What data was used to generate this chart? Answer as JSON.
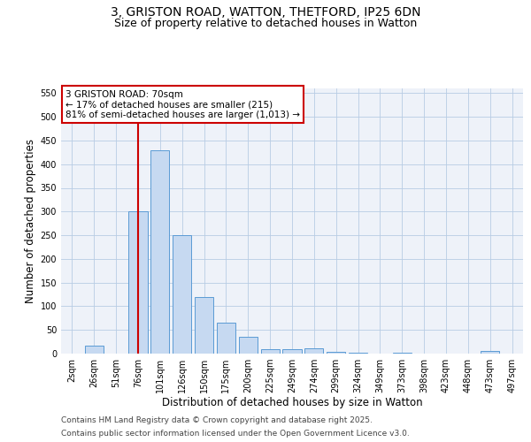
{
  "title1": "3, GRISTON ROAD, WATTON, THETFORD, IP25 6DN",
  "title2": "Size of property relative to detached houses in Watton",
  "xlabel": "Distribution of detached houses by size in Watton",
  "ylabel": "Number of detached properties",
  "categories": [
    "2sqm",
    "26sqm",
    "51sqm",
    "76sqm",
    "101sqm",
    "126sqm",
    "150sqm",
    "175sqm",
    "200sqm",
    "225sqm",
    "249sqm",
    "274sqm",
    "299sqm",
    "324sqm",
    "349sqm",
    "373sqm",
    "398sqm",
    "423sqm",
    "448sqm",
    "473sqm",
    "497sqm"
  ],
  "values": [
    0,
    17,
    0,
    300,
    430,
    250,
    120,
    65,
    35,
    10,
    10,
    12,
    4,
    2,
    0,
    2,
    0,
    0,
    0,
    5,
    0
  ],
  "bar_color": "#c6d9f1",
  "bar_edge_color": "#5b9bd5",
  "red_line_index": 3,
  "red_line_color": "#cc0000",
  "annotation_line1": "3 GRISTON ROAD: 70sqm",
  "annotation_line2": "← 17% of detached houses are smaller (215)",
  "annotation_line3": "81% of semi-detached houses are larger (1,013) →",
  "annotation_box_color": "#ffffff",
  "annotation_box_edge": "#cc0000",
  "ylim": [
    0,
    560
  ],
  "yticks": [
    0,
    50,
    100,
    150,
    200,
    250,
    300,
    350,
    400,
    450,
    500,
    550
  ],
  "footer1": "Contains HM Land Registry data © Crown copyright and database right 2025.",
  "footer2": "Contains public sector information licensed under the Open Government Licence v3.0.",
  "bg_color": "#eef2f9",
  "title_fontsize": 10,
  "subtitle_fontsize": 9,
  "axis_fontsize": 8.5,
  "tick_fontsize": 7,
  "annotation_fontsize": 7.5,
  "footer_fontsize": 6.5
}
